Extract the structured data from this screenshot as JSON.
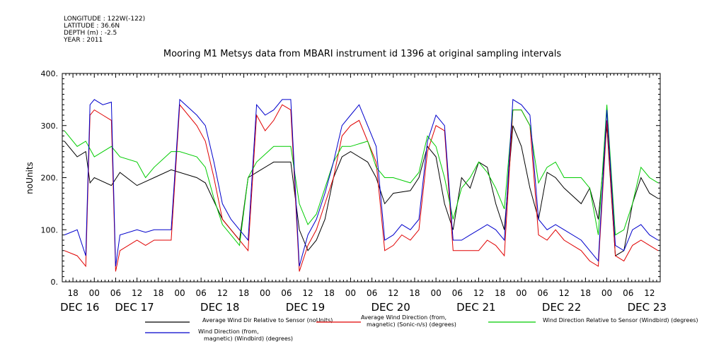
{
  "meta": {
    "longitude": "LONGITUDE : 122W(-122)",
    "latitude": "LATITUDE : 36.6N",
    "depth": "DEPTH (m) : -2.5",
    "year": "YEAR : 2011"
  },
  "chart_data": {
    "type": "line",
    "title": "Mooring M1 Metsys data from MBARI instrument id 1396 at original sampling intervals",
    "ylabel": "noUnits",
    "ylim": [
      0,
      400
    ],
    "y_ticks": [
      "0.",
      "100.",
      "200.",
      "300.",
      "400."
    ],
    "xlim": [
      16.625,
      23.625
    ],
    "x_hour_ticks": [
      {
        "x": 16.75,
        "label": "18"
      },
      {
        "x": 17.0,
        "label": "00"
      },
      {
        "x": 17.25,
        "label": "06"
      },
      {
        "x": 17.5,
        "label": "12"
      },
      {
        "x": 17.75,
        "label": "18"
      },
      {
        "x": 18.0,
        "label": "00"
      },
      {
        "x": 18.25,
        "label": "06"
      },
      {
        "x": 18.5,
        "label": "12"
      },
      {
        "x": 18.75,
        "label": "18"
      },
      {
        "x": 19.0,
        "label": "00"
      },
      {
        "x": 19.25,
        "label": "06"
      },
      {
        "x": 19.5,
        "label": "12"
      },
      {
        "x": 19.75,
        "label": "18"
      },
      {
        "x": 20.0,
        "label": "00"
      },
      {
        "x": 20.25,
        "label": "06"
      },
      {
        "x": 20.5,
        "label": "12"
      },
      {
        "x": 20.75,
        "label": "18"
      },
      {
        "x": 21.0,
        "label": "00"
      },
      {
        "x": 21.25,
        "label": "06"
      },
      {
        "x": 21.5,
        "label": "12"
      },
      {
        "x": 21.75,
        "label": "18"
      },
      {
        "x": 22.0,
        "label": "00"
      },
      {
        "x": 22.25,
        "label": "06"
      },
      {
        "x": 22.5,
        "label": "12"
      },
      {
        "x": 22.75,
        "label": "18"
      },
      {
        "x": 23.0,
        "label": "00"
      },
      {
        "x": 23.25,
        "label": "06"
      },
      {
        "x": 23.5,
        "label": "12"
      }
    ],
    "x_day_labels": [
      {
        "x": 16.83,
        "label": "DEC 16"
      },
      {
        "x": 17.47,
        "label": "DEC 17"
      },
      {
        "x": 18.47,
        "label": "DEC 18"
      },
      {
        "x": 19.47,
        "label": "DEC 19"
      },
      {
        "x": 20.47,
        "label": "DEC 20"
      },
      {
        "x": 21.47,
        "label": "DEC 21"
      },
      {
        "x": 22.47,
        "label": "DEC 22"
      },
      {
        "x": 23.47,
        "label": "DEC 23"
      }
    ],
    "series": [
      {
        "name": "Average Wind Dir Relative to Sensor (noUnits)",
        "color": "#000000",
        "x": [
          16.65,
          16.8,
          16.9,
          16.95,
          17.0,
          17.2,
          17.3,
          17.5,
          17.7,
          17.9,
          18.0,
          18.2,
          18.3,
          18.5,
          18.7,
          18.8,
          18.9,
          19.1,
          19.3,
          19.4,
          19.5,
          19.6,
          19.7,
          19.8,
          19.9,
          20.0,
          20.2,
          20.3,
          20.4,
          20.5,
          20.7,
          20.8,
          20.9,
          21.0,
          21.1,
          21.2,
          21.3,
          21.4,
          21.5,
          21.6,
          21.7,
          21.8,
          21.9,
          22.0,
          22.1,
          22.2,
          22.3,
          22.4,
          22.5,
          22.7,
          22.8,
          22.9,
          23.0,
          23.1,
          23.2,
          23.3,
          23.4,
          23.5,
          23.6
        ],
        "y": [
          270,
          240,
          250,
          190,
          200,
          185,
          210,
          185,
          200,
          215,
          210,
          200,
          190,
          120,
          80,
          200,
          210,
          230,
          230,
          100,
          60,
          80,
          120,
          200,
          240,
          250,
          230,
          200,
          150,
          170,
          175,
          200,
          260,
          240,
          150,
          100,
          200,
          180,
          230,
          220,
          150,
          100,
          300,
          260,
          180,
          120,
          210,
          200,
          180,
          150,
          180,
          120,
          300,
          50,
          60,
          150,
          200,
          170,
          160
        ]
      },
      {
        "name": "Average Wind Direction (from, magnetic) (Sonic-n/s) (degrees)",
        "color": "#e00000",
        "x": [
          16.65,
          16.8,
          16.9,
          16.95,
          17.0,
          17.1,
          17.2,
          17.25,
          17.3,
          17.5,
          17.6,
          17.7,
          17.9,
          18.0,
          18.2,
          18.3,
          18.4,
          18.5,
          18.6,
          18.7,
          18.8,
          18.9,
          19.0,
          19.1,
          19.2,
          19.3,
          19.4,
          19.5,
          19.6,
          19.7,
          19.8,
          19.9,
          20.0,
          20.1,
          20.3,
          20.4,
          20.5,
          20.6,
          20.7,
          20.8,
          20.9,
          21.0,
          21.1,
          21.2,
          21.3,
          21.4,
          21.5,
          21.6,
          21.7,
          21.8,
          21.9,
          22.0,
          22.1,
          22.2,
          22.3,
          22.4,
          22.5,
          22.7,
          22.8,
          22.9,
          23.0,
          23.1,
          23.2,
          23.3,
          23.4,
          23.5,
          23.6
        ],
        "y": [
          60,
          50,
          30,
          320,
          330,
          320,
          310,
          20,
          60,
          80,
          70,
          80,
          80,
          340,
          300,
          270,
          200,
          120,
          100,
          80,
          60,
          320,
          290,
          310,
          340,
          330,
          20,
          70,
          100,
          150,
          200,
          280,
          300,
          310,
          230,
          60,
          70,
          90,
          80,
          100,
          250,
          300,
          290,
          60,
          60,
          60,
          60,
          80,
          70,
          50,
          330,
          330,
          300,
          90,
          80,
          100,
          80,
          60,
          40,
          30,
          310,
          50,
          40,
          70,
          80,
          70,
          60
        ]
      },
      {
        "name": "Wind Direction Relative to Sensor (Windbird) (degrees)",
        "color": "#00cc00",
        "x": [
          16.65,
          16.8,
          16.9,
          17.0,
          17.2,
          17.3,
          17.5,
          17.6,
          17.7,
          17.9,
          18.0,
          18.2,
          18.3,
          18.4,
          18.5,
          18.6,
          18.7,
          18.8,
          18.9,
          19.1,
          19.3,
          19.4,
          19.5,
          19.6,
          19.7,
          19.8,
          19.9,
          20.0,
          20.2,
          20.3,
          20.4,
          20.5,
          20.7,
          20.8,
          20.9,
          21.0,
          21.1,
          21.2,
          21.3,
          21.4,
          21.5,
          21.6,
          21.7,
          21.8,
          21.9,
          22.0,
          22.1,
          22.2,
          22.3,
          22.4,
          22.5,
          22.7,
          22.8,
          22.9,
          23.0,
          23.1,
          23.2,
          23.3,
          23.4,
          23.5,
          23.6
        ],
        "y": [
          290,
          260,
          270,
          240,
          260,
          240,
          230,
          200,
          220,
          250,
          250,
          240,
          220,
          160,
          110,
          90,
          70,
          200,
          230,
          260,
          260,
          150,
          110,
          130,
          180,
          230,
          260,
          260,
          270,
          220,
          200,
          200,
          190,
          210,
          280,
          260,
          200,
          120,
          180,
          200,
          230,
          210,
          180,
          140,
          330,
          330,
          300,
          190,
          220,
          230,
          200,
          200,
          180,
          90,
          340,
          90,
          100,
          150,
          220,
          200,
          190
        ]
      },
      {
        "name": "Wind Direction (from, magnetic) (Windbird) (degrees)",
        "color": "#0000cc",
        "x": [
          16.65,
          16.8,
          16.9,
          16.95,
          17.0,
          17.1,
          17.2,
          17.25,
          17.3,
          17.5,
          17.6,
          17.7,
          17.9,
          18.0,
          18.2,
          18.3,
          18.4,
          18.5,
          18.6,
          18.7,
          18.8,
          18.9,
          19.0,
          19.1,
          19.2,
          19.3,
          19.4,
          19.5,
          19.6,
          19.7,
          19.8,
          19.9,
          20.0,
          20.1,
          20.3,
          20.4,
          20.5,
          20.6,
          20.7,
          20.8,
          20.9,
          21.0,
          21.1,
          21.2,
          21.3,
          21.4,
          21.5,
          21.6,
          21.7,
          21.8,
          21.9,
          22.0,
          22.1,
          22.2,
          22.3,
          22.4,
          22.5,
          22.7,
          22.8,
          22.9,
          23.0,
          23.1,
          23.2,
          23.3,
          23.4,
          23.5,
          23.6
        ],
        "y": [
          90,
          100,
          50,
          340,
          350,
          340,
          345,
          30,
          90,
          100,
          95,
          100,
          100,
          350,
          320,
          300,
          230,
          150,
          120,
          100,
          80,
          340,
          320,
          330,
          350,
          350,
          30,
          90,
          120,
          170,
          230,
          300,
          320,
          340,
          260,
          80,
          90,
          110,
          100,
          120,
          270,
          320,
          300,
          80,
          80,
          90,
          100,
          110,
          100,
          80,
          350,
          340,
          320,
          120,
          100,
          110,
          100,
          80,
          60,
          40,
          330,
          70,
          60,
          100,
          110,
          90,
          80
        ]
      }
    ],
    "legend": [
      {
        "label": "Average Wind Dir Relative to Sensor (noUnits)"
      },
      {
        "label": "Average Wind Direction (from,",
        "label2": "magnetic) (Sonic-n/s) (degrees)"
      },
      {
        "label": "Wind Direction Relative to Sensor (Windbird) (degrees)"
      },
      {
        "label": "Wind Direction (from,",
        "label2": "magnetic) (Windbird) (degrees)"
      }
    ]
  }
}
